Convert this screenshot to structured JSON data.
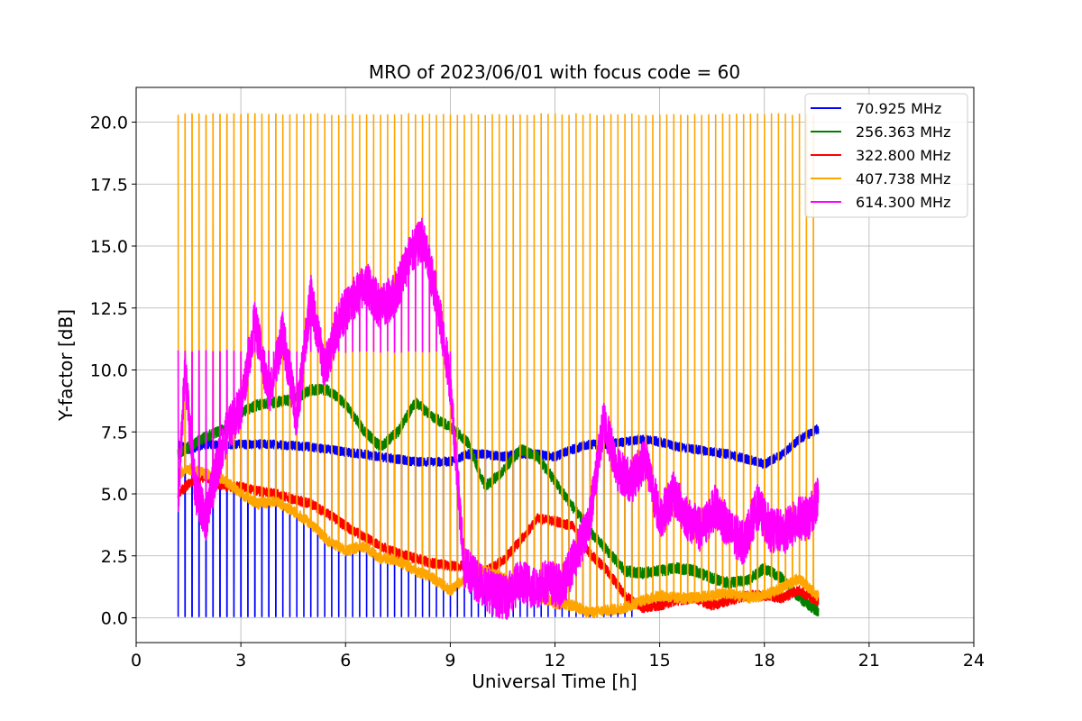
{
  "chart_data": {
    "type": "line",
    "title": "MRO of 2023/06/01 with focus code = 60",
    "xlabel": "Universal Time [h]",
    "ylabel": "Y-factor [dB]",
    "xlim": [
      0,
      24
    ],
    "ylim": [
      -1.0,
      21.4
    ],
    "xticks": [
      0,
      3,
      6,
      9,
      12,
      15,
      18,
      21,
      24
    ],
    "xtick_labels": [
      "0",
      "3",
      "6",
      "9",
      "12",
      "15",
      "18",
      "21",
      "24"
    ],
    "yticks": [
      0.0,
      2.5,
      5.0,
      7.5,
      10.0,
      12.5,
      15.0,
      17.5,
      20.0
    ],
    "ytick_labels": [
      "0.0",
      "2.5",
      "5.0",
      "7.5",
      "10.0",
      "12.5",
      "15.0",
      "17.5",
      "20.0"
    ],
    "grid": true,
    "legend_position": "top-right",
    "data_start_hour": 1.2,
    "data_end_hour": 19.55,
    "spike_period_hours": 0.2,
    "series": [
      {
        "name": " 70.925 MHz",
        "color": "#0000ff",
        "spike_low": 0.05,
        "spike_low_end_hour": 14.3,
        "x": [
          1.2,
          1.5,
          2.0,
          3.0,
          4.0,
          5.0,
          6.0,
          7.0,
          8.0,
          9.0,
          9.5,
          10.0,
          10.5,
          11.0,
          11.5,
          12.0,
          12.5,
          13.0,
          13.5,
          14.0,
          14.5,
          15.0,
          15.5,
          16.0,
          16.5,
          17.0,
          17.5,
          18.0,
          18.5,
          19.0,
          19.5
        ],
        "y": [
          7.0,
          6.8,
          7.0,
          7.0,
          7.0,
          6.9,
          6.7,
          6.5,
          6.3,
          6.3,
          6.6,
          6.6,
          6.5,
          6.6,
          6.6,
          6.5,
          6.8,
          7.0,
          7.0,
          7.1,
          7.2,
          7.1,
          6.9,
          6.8,
          6.7,
          6.6,
          6.4,
          6.2,
          6.6,
          7.2,
          7.6
        ]
      },
      {
        "name": "256.363 MHz",
        "color": "#008000",
        "x": [
          1.2,
          1.5,
          2.0,
          2.5,
          3.0,
          3.5,
          4.0,
          4.5,
          5.0,
          5.5,
          6.0,
          6.5,
          7.0,
          7.5,
          8.0,
          8.5,
          9.0,
          9.5,
          10.0,
          10.5,
          11.0,
          11.5,
          12.0,
          12.5,
          13.0,
          13.5,
          14.0,
          14.5,
          15.0,
          15.5,
          16.0,
          16.5,
          17.0,
          17.5,
          18.0,
          18.5,
          19.0,
          19.5
        ],
        "y": [
          6.6,
          6.9,
          7.3,
          7.6,
          8.3,
          8.6,
          8.7,
          8.8,
          9.2,
          9.2,
          8.6,
          7.6,
          6.9,
          7.5,
          8.7,
          8.1,
          7.7,
          7.1,
          5.3,
          5.9,
          6.8,
          6.5,
          5.5,
          4.5,
          3.5,
          2.7,
          1.9,
          1.8,
          1.9,
          2.0,
          1.9,
          1.6,
          1.4,
          1.5,
          2.0,
          1.6,
          0.8,
          0.3
        ]
      },
      {
        "name": "322.800 MHz",
        "color": "#ff0000",
        "x": [
          1.2,
          1.5,
          2.0,
          2.5,
          3.0,
          3.5,
          4.0,
          4.5,
          5.0,
          5.5,
          6.0,
          6.5,
          7.0,
          7.5,
          8.0,
          8.5,
          9.0,
          9.5,
          10.0,
          10.5,
          11.0,
          11.5,
          12.0,
          12.5,
          13.0,
          13.5,
          14.0,
          14.5,
          15.0,
          15.5,
          16.0,
          16.5,
          17.0,
          17.5,
          18.0,
          18.5,
          19.0,
          19.5
        ],
        "y": [
          5.0,
          5.4,
          5.7,
          5.3,
          5.3,
          5.1,
          5.0,
          4.8,
          4.6,
          4.2,
          3.7,
          3.3,
          2.9,
          2.6,
          2.4,
          2.2,
          2.1,
          2.1,
          1.9,
          2.3,
          3.1,
          4.0,
          3.9,
          3.7,
          2.6,
          1.9,
          0.9,
          0.4,
          0.5,
          0.7,
          0.8,
          0.5,
          0.7,
          0.9,
          0.9,
          0.8,
          1.1,
          0.7
        ]
      },
      {
        "name": "407.738 MHz",
        "color": "#ffa500",
        "spike_high": 20.3,
        "x": [
          1.2,
          1.5,
          2.0,
          2.5,
          3.0,
          3.5,
          4.0,
          4.5,
          5.0,
          5.5,
          6.0,
          6.5,
          7.0,
          7.5,
          8.0,
          8.5,
          9.0,
          9.5,
          10.0,
          10.5,
          11.0,
          11.5,
          12.0,
          12.5,
          13.0,
          13.5,
          14.0,
          14.5,
          15.0,
          15.5,
          16.0,
          16.5,
          17.0,
          17.5,
          18.0,
          18.5,
          19.0,
          19.5
        ],
        "y": [
          5.8,
          6.0,
          5.8,
          5.6,
          5.0,
          4.6,
          4.7,
          4.3,
          3.8,
          3.1,
          2.7,
          2.9,
          2.4,
          2.3,
          1.9,
          1.6,
          1.1,
          1.7,
          1.9,
          1.6,
          1.3,
          0.9,
          0.6,
          0.5,
          0.2,
          0.3,
          0.4,
          0.7,
          0.9,
          0.8,
          0.8,
          0.9,
          1.0,
          0.8,
          0.9,
          1.2,
          1.6,
          0.9
        ]
      },
      {
        "name": "614.300 MHz",
        "color": "#ff00ff",
        "spike_high": 10.75,
        "spike_high_end_hour": 9.2,
        "x": [
          1.2,
          1.4,
          1.7,
          2.0,
          2.3,
          2.6,
          3.0,
          3.4,
          3.8,
          4.2,
          4.6,
          5.0,
          5.4,
          5.8,
          6.2,
          6.6,
          7.0,
          7.4,
          7.8,
          8.2,
          8.6,
          9.0,
          9.4,
          9.8,
          10.2,
          10.6,
          11.0,
          11.4,
          11.8,
          12.2,
          12.6,
          13.0,
          13.4,
          13.8,
          14.2,
          14.6,
          15.0,
          15.4,
          15.8,
          16.2,
          16.6,
          17.0,
          17.4,
          17.8,
          18.2,
          18.6,
          19.0,
          19.3,
          19.55
        ],
        "y": [
          4.5,
          10.0,
          5.0,
          4.0,
          6.0,
          7.5,
          8.5,
          12.0,
          9.0,
          11.5,
          8.0,
          13.0,
          10.0,
          12.0,
          12.8,
          13.5,
          12.5,
          13.0,
          14.5,
          15.3,
          13.0,
          9.5,
          2.0,
          1.5,
          1.0,
          0.8,
          1.5,
          1.2,
          1.5,
          1.2,
          2.5,
          4.0,
          8.0,
          6.0,
          5.5,
          6.5,
          4.0,
          5.0,
          4.0,
          3.5,
          4.5,
          3.5,
          3.0,
          4.5,
          3.5,
          3.5,
          4.0,
          4.0,
          5.0
        ]
      }
    ]
  }
}
